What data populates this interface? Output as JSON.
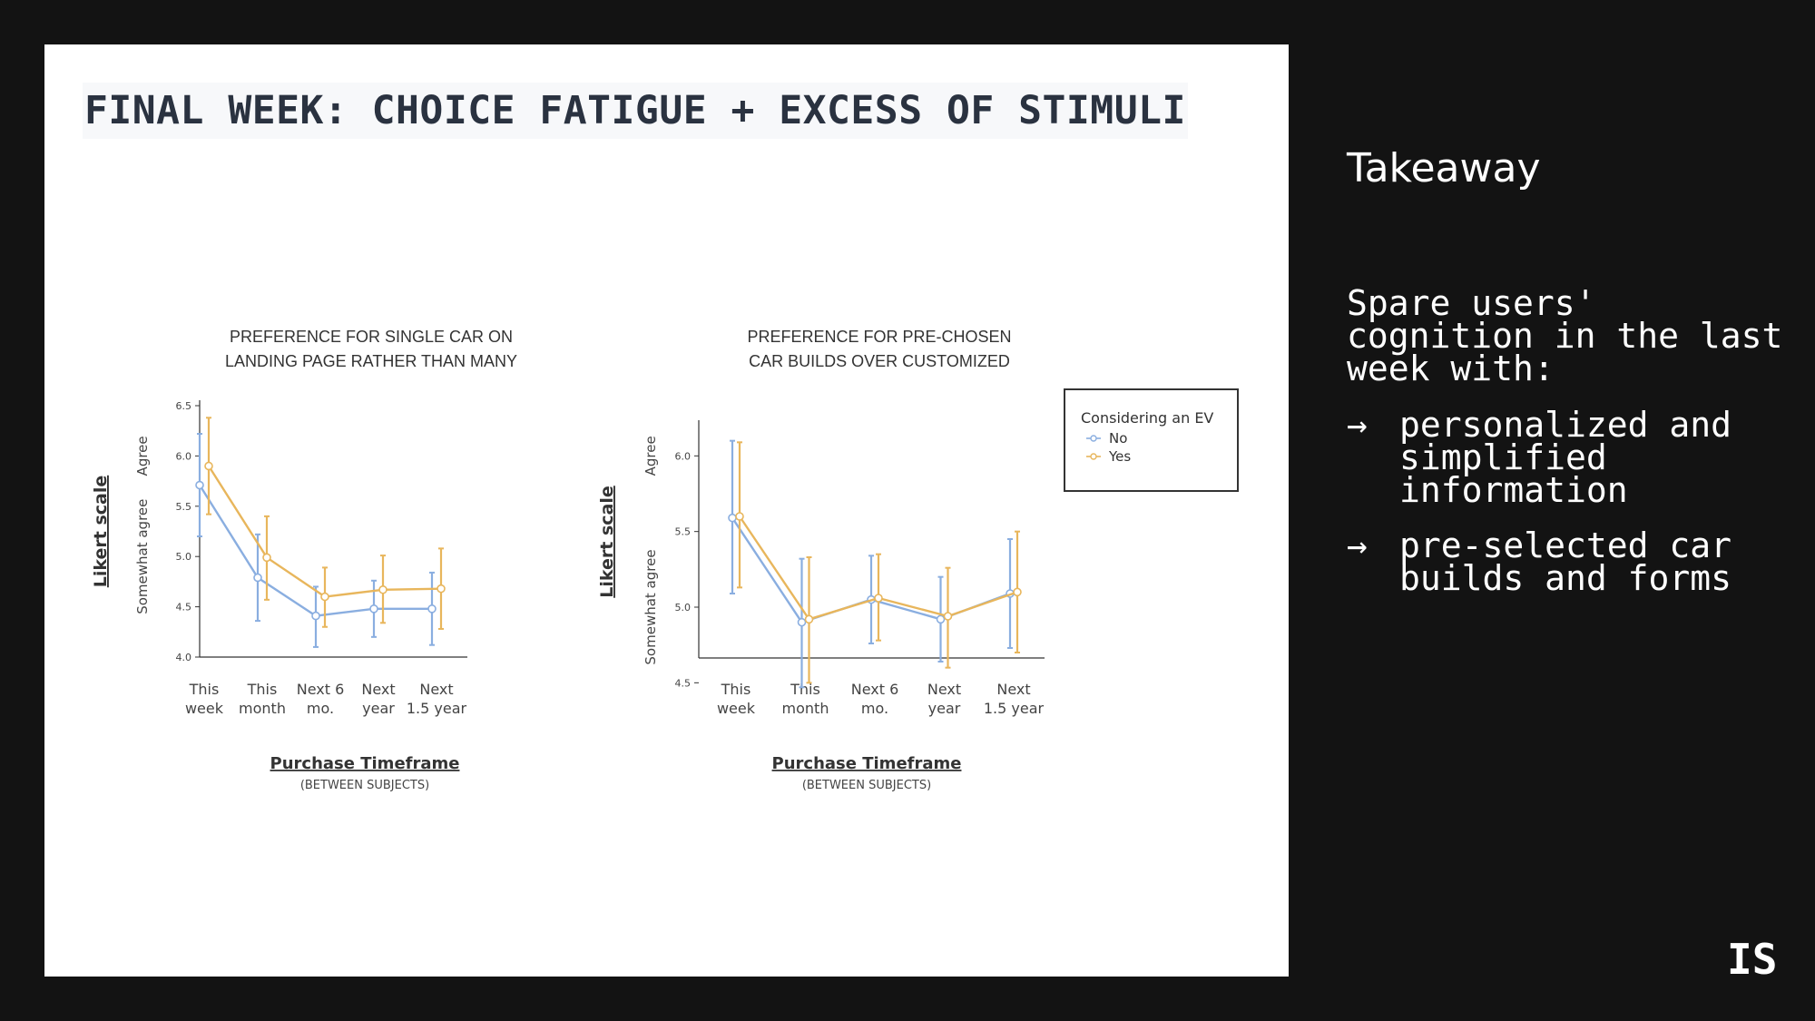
{
  "slide": {
    "title": "FINAL WEEK: CHOICE FATIGUE + EXCESS OF STIMULI"
  },
  "side_panel": {
    "heading": "Takeaway",
    "intro": "Spare users' cognition in the last week with:",
    "bullets": [
      {
        "arrow": "→",
        "text": "personalized and simplified information"
      },
      {
        "arrow": "→",
        "text": "pre-selected car builds and forms"
      }
    ],
    "logo": "IS"
  },
  "colors": {
    "page_background": "#131313",
    "slide_background": "#ffffff",
    "series_no": "#8aaee0",
    "series_yes": "#e8b65c"
  },
  "chart_data": [
    {
      "type": "line",
      "title_lines": [
        "PREFERENCE FOR SINGLE CAR ON",
        "LANDING PAGE RATHER THAN MANY"
      ],
      "categories": [
        "This week",
        "This month",
        "Next 6 mo.",
        "Next year",
        "Next 1.5 year"
      ],
      "category_lines": [
        [
          "This",
          "week"
        ],
        [
          "This",
          "month"
        ],
        [
          "Next 6",
          "mo."
        ],
        [
          "Next",
          "year"
        ],
        [
          "Next",
          "1.5 year"
        ]
      ],
      "xlabel": "Purchase Timeframe",
      "xlabel_sub": "(BETWEEN SUBJECTS)",
      "ylabel": "Likert scale",
      "y_anchor_labels": [
        {
          "text": "Agree",
          "value": 6.0
        },
        {
          "text": "Somewhat agree",
          "value": 5.0
        }
      ],
      "ylim": [
        4.0,
        6.5
      ],
      "yticks": [
        "4.0",
        "4.5",
        "5.0",
        "5.5",
        "6.0",
        "6.5"
      ],
      "error_bars": true,
      "series": [
        {
          "name": "No",
          "values": [
            5.71,
            4.79,
            4.41,
            4.48,
            4.48
          ],
          "lower": [
            5.2,
            4.36,
            4.1,
            4.2,
            4.12
          ],
          "upper": [
            6.22,
            5.22,
            4.7,
            4.76,
            4.84
          ]
        },
        {
          "name": "Yes",
          "values": [
            5.9,
            4.99,
            4.6,
            4.67,
            4.68
          ],
          "lower": [
            5.42,
            4.57,
            4.3,
            4.34,
            4.28
          ],
          "upper": [
            6.38,
            5.4,
            4.89,
            5.01,
            5.08
          ]
        }
      ]
    },
    {
      "type": "line",
      "title_lines": [
        "PREFERENCE FOR PRE-CHOSEN",
        "CAR BUILDS OVER CUSTOMIZED"
      ],
      "categories": [
        "This week",
        "This month",
        "Next 6 mo.",
        "Next year",
        "Next 1.5 year"
      ],
      "category_lines": [
        [
          "This",
          "week"
        ],
        [
          "This",
          "month"
        ],
        [
          "Next 6",
          "mo."
        ],
        [
          "Next",
          "year"
        ],
        [
          "Next",
          "1.5 year"
        ]
      ],
      "xlabel": "Purchase Timeframe",
      "xlabel_sub": "(BETWEEN SUBJECTS)",
      "ylabel": "Likert scale",
      "y_anchor_labels": [
        {
          "text": "Agree",
          "value": 6.0
        },
        {
          "text": "Somewhat agree",
          "value": 5.0
        }
      ],
      "ylim": [
        4.4,
        6.2
      ],
      "yticks": [
        "4.5",
        "5.0",
        "5.5",
        "6.0"
      ],
      "error_bars": true,
      "legend": {
        "title": "Considering an EV",
        "position": "right"
      },
      "series": [
        {
          "name": "No",
          "values": [
            5.59,
            4.9,
            5.05,
            4.92,
            5.09
          ],
          "lower": [
            5.09,
            4.47,
            4.76,
            4.64,
            4.73
          ],
          "upper": [
            6.1,
            5.32,
            5.34,
            5.2,
            5.45
          ]
        },
        {
          "name": "Yes",
          "values": [
            5.6,
            4.92,
            5.06,
            4.94,
            5.1
          ],
          "lower": [
            5.13,
            4.5,
            4.78,
            4.6,
            4.7
          ],
          "upper": [
            6.09,
            5.33,
            5.35,
            5.26,
            5.5
          ]
        }
      ]
    }
  ]
}
